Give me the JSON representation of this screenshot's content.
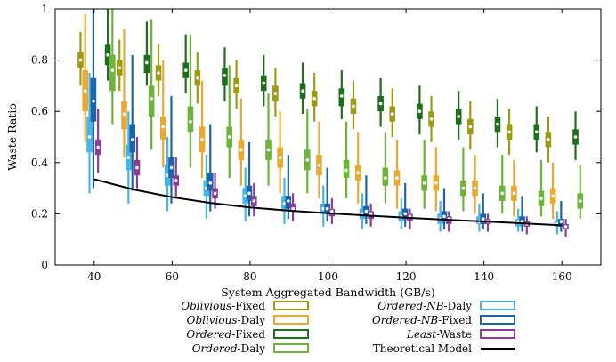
{
  "chart_data": {
    "type": "violin",
    "xlabel": "System Aggregated Bandwidth (GB/s)",
    "ylabel": "Waste Ratio",
    "xlim": [
      30,
      170
    ],
    "ylim": [
      0,
      1
    ],
    "xticks": [
      40,
      60,
      80,
      100,
      120,
      140,
      160
    ],
    "yticks": [
      0,
      0.2,
      0.4,
      0.6,
      0.8,
      1
    ],
    "grid": false,
    "legend_position": "bottom",
    "bandwidths": [
      40,
      50,
      60,
      70,
      80,
      90,
      100,
      110,
      120,
      130,
      140,
      150,
      160
    ],
    "series": [
      {
        "key": "obliv_fixed",
        "name_italic": "Oblivious",
        "name_rest": "-Fixed",
        "color": "#9b9b14",
        "offset": -3.5,
        "median": [
          0.8,
          0.77,
          0.75,
          0.73,
          0.7,
          0.67,
          0.65,
          0.62,
          0.59,
          0.57,
          0.54,
          0.52,
          0.49
        ],
        "q1": [
          0.77,
          0.74,
          0.72,
          0.7,
          0.67,
          0.64,
          0.62,
          0.59,
          0.56,
          0.54,
          0.51,
          0.49,
          0.46
        ],
        "q3": [
          0.83,
          0.8,
          0.78,
          0.76,
          0.73,
          0.7,
          0.68,
          0.65,
          0.62,
          0.6,
          0.57,
          0.55,
          0.52
        ],
        "min": [
          0.7,
          0.68,
          0.66,
          0.63,
          0.61,
          0.58,
          0.56,
          0.53,
          0.5,
          0.48,
          0.45,
          0.43,
          0.4
        ],
        "max": [
          0.91,
          0.88,
          0.86,
          0.83,
          0.8,
          0.77,
          0.75,
          0.72,
          0.69,
          0.66,
          0.64,
          0.61,
          0.58
        ]
      },
      {
        "key": "obliv_daly",
        "name_italic": "Oblivious",
        "name_rest": "-Daly",
        "color": "#e8aa32",
        "offset": -2.3,
        "median": [
          0.68,
          0.59,
          0.54,
          0.49,
          0.45,
          0.42,
          0.39,
          0.36,
          0.34,
          0.32,
          0.3,
          0.28,
          0.27
        ],
        "q1": [
          0.6,
          0.53,
          0.49,
          0.44,
          0.41,
          0.38,
          0.35,
          0.33,
          0.31,
          0.29,
          0.27,
          0.25,
          0.24
        ],
        "q3": [
          0.76,
          0.64,
          0.58,
          0.54,
          0.49,
          0.46,
          0.43,
          0.39,
          0.37,
          0.35,
          0.33,
          0.31,
          0.3
        ],
        "min": [
          0.48,
          0.42,
          0.38,
          0.34,
          0.31,
          0.28,
          0.26,
          0.24,
          0.22,
          0.21,
          0.2,
          0.19,
          0.18
        ],
        "max": [
          0.98,
          0.92,
          0.8,
          0.72,
          0.65,
          0.6,
          0.56,
          0.52,
          0.49,
          0.46,
          0.43,
          0.41,
          0.4
        ]
      },
      {
        "key": "ord_fixed",
        "name_italic": "Ordered",
        "name_rest": "-Fixed",
        "color": "#1e6e1e",
        "offset": 3.5,
        "median": [
          0.82,
          0.79,
          0.76,
          0.74,
          0.71,
          0.68,
          0.66,
          0.63,
          0.6,
          0.58,
          0.55,
          0.52,
          0.5
        ],
        "q1": [
          0.78,
          0.75,
          0.73,
          0.7,
          0.68,
          0.65,
          0.62,
          0.6,
          0.57,
          0.55,
          0.52,
          0.49,
          0.47
        ],
        "q3": [
          0.86,
          0.82,
          0.79,
          0.77,
          0.74,
          0.71,
          0.69,
          0.66,
          0.63,
          0.61,
          0.58,
          0.55,
          0.53
        ],
        "min": [
          0.72,
          0.7,
          0.67,
          0.64,
          0.62,
          0.59,
          0.57,
          0.54,
          0.51,
          0.49,
          0.46,
          0.44,
          0.41
        ],
        "max": [
          1.0,
          0.95,
          0.9,
          0.85,
          0.82,
          0.79,
          0.76,
          0.73,
          0.7,
          0.68,
          0.65,
          0.62,
          0.6
        ]
      },
      {
        "key": "ord_daly",
        "name_italic": "Ordered",
        "name_rest": "-Daly",
        "color": "#6eb43c",
        "offset": 4.7,
        "median": [
          0.76,
          0.65,
          0.56,
          0.5,
          0.45,
          0.41,
          0.37,
          0.34,
          0.32,
          0.3,
          0.28,
          0.26,
          0.25
        ],
        "q1": [
          0.68,
          0.58,
          0.52,
          0.46,
          0.41,
          0.37,
          0.34,
          0.31,
          0.29,
          0.27,
          0.25,
          0.23,
          0.22
        ],
        "q3": [
          0.82,
          0.7,
          0.62,
          0.54,
          0.49,
          0.45,
          0.41,
          0.38,
          0.35,
          0.33,
          0.31,
          0.29,
          0.28
        ],
        "min": [
          0.55,
          0.45,
          0.38,
          0.34,
          0.31,
          0.28,
          0.26,
          0.24,
          0.22,
          0.21,
          0.2,
          0.19,
          0.18
        ],
        "max": [
          1.0,
          0.96,
          0.9,
          0.78,
          0.67,
          0.61,
          0.56,
          0.52,
          0.49,
          0.46,
          0.43,
          0.41,
          0.39
        ]
      },
      {
        "key": "ordnb_daly",
        "name_italic": "Ordered-NB",
        "name_rest": "-Daly",
        "color": "#4bb4e6",
        "offset": -1.2,
        "median": [
          0.5,
          0.42,
          0.35,
          0.3,
          0.27,
          0.24,
          0.22,
          0.2,
          0.19,
          0.18,
          0.17,
          0.17,
          0.16
        ],
        "q1": [
          0.44,
          0.37,
          0.31,
          0.27,
          0.24,
          0.21,
          0.2,
          0.18,
          0.17,
          0.16,
          0.16,
          0.15,
          0.15
        ],
        "q3": [
          0.58,
          0.47,
          0.39,
          0.33,
          0.3,
          0.27,
          0.24,
          0.22,
          0.21,
          0.2,
          0.19,
          0.18,
          0.17
        ],
        "min": [
          0.28,
          0.24,
          0.21,
          0.18,
          0.17,
          0.16,
          0.15,
          0.14,
          0.14,
          0.13,
          0.13,
          0.13,
          0.12
        ],
        "max": [
          0.75,
          0.6,
          0.5,
          0.43,
          0.38,
          0.34,
          0.31,
          0.28,
          0.26,
          0.25,
          0.24,
          0.22,
          0.21
        ]
      },
      {
        "key": "ordnb_fixed",
        "name_italic": "Ordered-NB",
        "name_rest": "-Fixed",
        "color": "#1c64a8",
        "offset": -0.2,
        "median": [
          0.64,
          0.49,
          0.38,
          0.32,
          0.28,
          0.25,
          0.22,
          0.21,
          0.2,
          0.19,
          0.18,
          0.17,
          0.17
        ],
        "q1": [
          0.56,
          0.44,
          0.34,
          0.29,
          0.25,
          0.22,
          0.2,
          0.19,
          0.18,
          0.17,
          0.16,
          0.16,
          0.15
        ],
        "q3": [
          0.73,
          0.55,
          0.42,
          0.36,
          0.31,
          0.27,
          0.24,
          0.23,
          0.22,
          0.21,
          0.2,
          0.19,
          0.18
        ],
        "min": [
          0.3,
          0.29,
          0.24,
          0.21,
          0.19,
          0.18,
          0.17,
          0.16,
          0.15,
          0.14,
          0.14,
          0.13,
          0.13
        ],
        "max": [
          1.0,
          0.82,
          0.66,
          0.55,
          0.48,
          0.43,
          0.38,
          0.35,
          0.32,
          0.3,
          0.28,
          0.27,
          0.25
        ]
      },
      {
        "key": "least_waste",
        "name_italic": "Least",
        "name_rest": "-Waste",
        "color": "#8c3c96",
        "offset": 1.0,
        "median": [
          0.46,
          0.38,
          0.33,
          0.28,
          0.25,
          0.22,
          0.21,
          0.2,
          0.19,
          0.18,
          0.17,
          0.16,
          0.15
        ],
        "q1": [
          0.43,
          0.35,
          0.31,
          0.26,
          0.23,
          0.21,
          0.19,
          0.18,
          0.17,
          0.16,
          0.16,
          0.15,
          0.14
        ],
        "q3": [
          0.49,
          0.41,
          0.35,
          0.3,
          0.27,
          0.24,
          0.22,
          0.21,
          0.2,
          0.19,
          0.18,
          0.17,
          0.16
        ],
        "min": [
          0.36,
          0.3,
          0.26,
          0.22,
          0.19,
          0.17,
          0.16,
          0.15,
          0.14,
          0.13,
          0.13,
          0.12,
          0.11
        ],
        "max": [
          0.61,
          0.5,
          0.42,
          0.36,
          0.32,
          0.28,
          0.26,
          0.24,
          0.22,
          0.21,
          0.2,
          0.19,
          0.18
        ]
      }
    ],
    "theoretical_model": {
      "name": "Theoretical Model",
      "color": "#000000",
      "x": [
        40,
        50,
        60,
        70,
        80,
        90,
        100,
        110,
        120,
        130,
        140,
        150,
        160
      ],
      "y": [
        0.335,
        0.295,
        0.265,
        0.242,
        0.225,
        0.212,
        0.202,
        0.193,
        0.185,
        0.177,
        0.17,
        0.163,
        0.155
      ]
    },
    "legend": {
      "left": [
        "obliv_fixed",
        "obliv_daly",
        "ord_fixed",
        "ord_daly"
      ],
      "right": [
        "ordnb_daly",
        "ordnb_fixed",
        "least_waste",
        "model"
      ]
    }
  }
}
